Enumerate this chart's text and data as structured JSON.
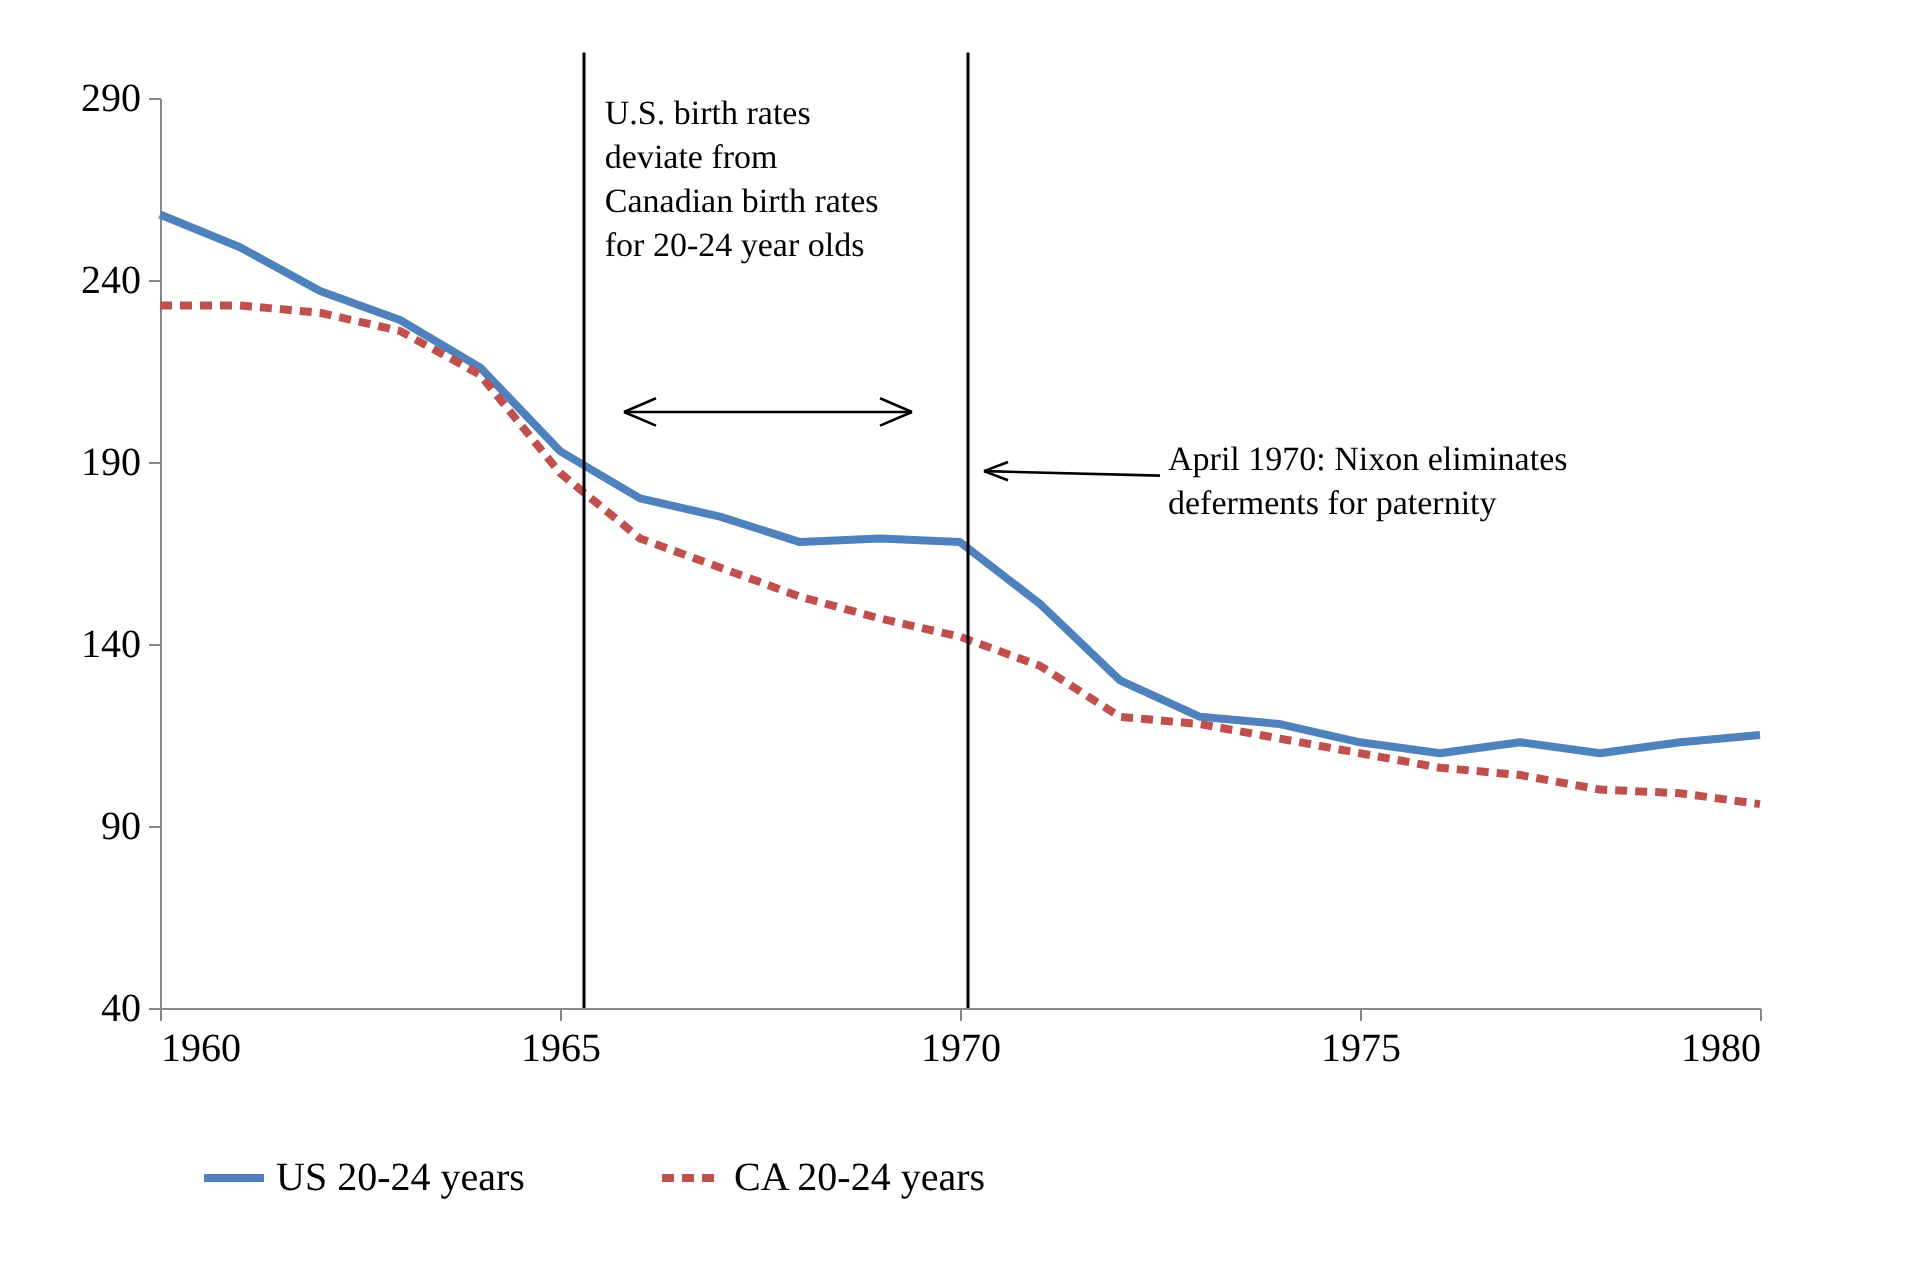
{
  "chart_data": {
    "type": "line",
    "x": [
      1960,
      1961,
      1962,
      1963,
      1964,
      1965,
      1966,
      1967,
      1968,
      1969,
      1970,
      1971,
      1972,
      1973,
      1974,
      1975,
      1976,
      1977,
      1978,
      1979,
      1980
    ],
    "series": [
      {
        "name": "US 20-24 years",
        "color": "#4f81bd",
        "line_style": "solid",
        "values": [
          258,
          249,
          237,
          229,
          216,
          193,
          180,
          175,
          168,
          169,
          168,
          151,
          130,
          120,
          118,
          113,
          110,
          113,
          110,
          113,
          115
        ]
      },
      {
        "name": "CA 20-24 years",
        "color": "#c0504d",
        "line_style": "dashed",
        "values": [
          233,
          233,
          231,
          226,
          214,
          187,
          169,
          161,
          153,
          147,
          142,
          134,
          120,
          118,
          114,
          110,
          106,
          104,
          100,
          99,
          96
        ]
      }
    ],
    "xlim": [
      1960,
      1980
    ],
    "xticks": [
      1960,
      1965,
      1970,
      1975,
      1980
    ],
    "ylim": [
      40,
      290
    ],
    "yticks": [
      40,
      90,
      140,
      190,
      240,
      290
    ],
    "grid": false,
    "legend": "bottom",
    "marker": "none",
    "ref_lines": [
      {
        "axis": "x",
        "value": 1965.3,
        "color": "#000000"
      },
      {
        "axis": "x",
        "value": 1970.1,
        "color": "#000000"
      }
    ],
    "annotations": [
      "U.S. birth rates\ndeviate from\nCanadian birth rates\nfor 20-24 year olds",
      "April 1970: Nixon eliminates\ndeferments for paternity"
    ]
  }
}
